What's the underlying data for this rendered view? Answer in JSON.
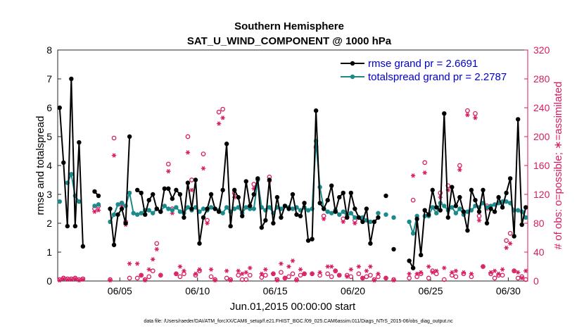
{
  "colors": {
    "rmse": "#000000",
    "spread": "#1a8a8a",
    "obs": "#d81b60",
    "legend_text": "#0000cc",
    "axis": "#262626"
  },
  "chart_data": {
    "type": "line",
    "title": "Southern Hemisphere",
    "subtitle": "SAT_U_WIND_COMPONENT @ 1000 hPa",
    "xlabel": "Jun.01,2015 00:00:00 start",
    "ylabel": "rmse and totalspread",
    "ylabel_right": "# of obs: o=possible; ∗=assimilated",
    "footnote": "data file: /Users/raeder/DAI/ATM_forcXX/CAM6_setup/f.e21.FHIST_BGC.f09_025.CAM6assim.011/Diags_NTrS_2015-06/obs_diag_output.nc",
    "xlim": [
      1.0,
      31.25
    ],
    "ylim": [
      0,
      8
    ],
    "ylim_right": [
      0,
      320
    ],
    "x_ticks": [
      5,
      10,
      15,
      20,
      25,
      30
    ],
    "x_tick_labels": [
      "06/05",
      "06/10",
      "06/15",
      "06/20",
      "06/25",
      "06/30"
    ],
    "y_ticks": [
      0,
      1,
      2,
      3,
      4,
      5,
      6,
      7,
      8
    ],
    "y_ticks_right": [
      0,
      40,
      80,
      120,
      160,
      200,
      240,
      280,
      320
    ],
    "legend": {
      "position": "top-right",
      "entries": [
        "rmse grand pr = 2.6691",
        "totalspread grand pr = 2.2787"
      ]
    },
    "series": [
      {
        "name": "rmse",
        "x": [
          1.125,
          1.375,
          1.625,
          1.875,
          2.125,
          2.375,
          2.625,
          3.375,
          3.625,
          4.375,
          4.625,
          4.875,
          5.125,
          5.375,
          5.625,
          5.875,
          6.125,
          6.375,
          6.625,
          6.875,
          7.125,
          7.375,
          7.625,
          7.875,
          8.125,
          8.375,
          8.625,
          8.875,
          9.125,
          9.375,
          9.625,
          9.875,
          10.125,
          10.375,
          10.625,
          10.875,
          11.125,
          11.375,
          11.625,
          11.875,
          12.125,
          12.375,
          12.625,
          12.875,
          13.125,
          13.375,
          13.625,
          13.875,
          14.125,
          14.375,
          14.625,
          14.875,
          15.125,
          15.375,
          15.625,
          15.875,
          16.125,
          16.375,
          16.625,
          16.875,
          17.125,
          17.375,
          17.625,
          17.875,
          18.125,
          18.375,
          18.625,
          18.875,
          19.125,
          19.375,
          19.625,
          19.875,
          20.125,
          20.375,
          20.625,
          20.875,
          21.125,
          21.375,
          21.625,
          22.125,
          22.625,
          23.625,
          23.875,
          24.125,
          24.375,
          24.625,
          24.875,
          25.125,
          25.375,
          25.625,
          25.875,
          26.125,
          26.375,
          26.625,
          26.875,
          27.125,
          27.375,
          27.625,
          27.875,
          28.125,
          28.375,
          28.625,
          28.875,
          29.125,
          29.375,
          29.625,
          29.875,
          30.125,
          30.375,
          30.625,
          30.875,
          31.125
        ],
        "values": [
          6.0,
          4.1,
          1.9,
          7.0,
          1.9,
          4.8,
          1.2,
          3.1,
          2.95,
          2.5,
          1.25,
          2.3,
          2.5,
          2.0,
          5.0,
          null,
          3.15,
          3.05,
          2.3,
          2.8,
          3.0,
          2.5,
          2.4,
          3.2,
          3.2,
          2.85,
          3.15,
          3.0,
          2.2,
          3.4,
          2.5,
          3.5,
          1.3,
          2.2,
          2.5,
          3.0,
          2.5,
          2.4,
          3.15,
          4.75,
          1.9,
          3.15,
          2.9,
          2.25,
          3.45,
          2.6,
          3.0,
          3.55,
          1.85,
          2.1,
          3.5,
          2.0,
          2.9,
          2.2,
          2.6,
          2.5,
          3.0,
          2.3,
          2.25,
          2.7,
          1.4,
          1.45,
          5.9,
          2.7,
          2.5,
          2.8,
          3.3,
          2.4,
          2.9,
          3.05,
          2.2,
          3.05,
          2.5,
          2.2,
          2.05,
          2.5,
          1.3,
          2.05,
          2.2,
          2.95,
          1.1,
          0.7,
          0.45,
          2.15,
          0.9,
          2.45,
          2.3,
          3.15,
          2.55,
          2.45,
          5.8,
          2.2,
          3.25,
          2.6,
          2.9,
          2.4,
          1.75,
          3.15,
          2.8,
          2.4,
          3.15,
          2.0,
          2.5,
          2.4,
          2.9,
          2.55,
          3.05,
          3.55,
          1.55,
          5.6,
          1.95,
          2.55
        ]
      },
      {
        "name": "totalspread",
        "x": [
          1.125,
          1.375,
          1.625,
          1.875,
          2.125,
          2.375,
          2.625,
          3.375,
          3.625,
          4.375,
          4.625,
          4.875,
          5.125,
          5.375,
          5.625,
          5.875,
          6.125,
          6.375,
          6.625,
          6.875,
          7.125,
          7.375,
          7.625,
          7.875,
          8.125,
          8.375,
          8.625,
          8.875,
          9.125,
          9.375,
          9.625,
          9.875,
          10.125,
          10.375,
          10.625,
          10.875,
          11.125,
          11.375,
          11.625,
          11.875,
          12.125,
          12.375,
          12.625,
          12.875,
          13.125,
          13.375,
          13.625,
          13.875,
          14.125,
          14.375,
          14.625,
          14.875,
          15.125,
          15.375,
          15.625,
          15.875,
          16.125,
          16.375,
          16.625,
          16.875,
          17.125,
          17.375,
          17.625,
          17.875,
          18.125,
          18.375,
          18.625,
          18.875,
          19.125,
          19.375,
          19.625,
          19.875,
          20.125,
          20.375,
          20.625,
          20.875,
          21.125,
          21.375,
          21.625,
          22.125,
          22.625,
          23.625,
          23.875,
          24.125,
          24.375,
          24.625,
          24.875,
          25.125,
          25.375,
          25.625,
          25.875,
          26.125,
          26.375,
          26.625,
          26.875,
          27.125,
          27.375,
          27.625,
          27.875,
          28.125,
          28.375,
          28.625,
          28.875,
          29.125,
          29.375,
          29.625,
          29.875,
          30.125,
          30.375,
          30.625,
          30.875,
          31.125
        ],
        "values": [
          2.75,
          null,
          3.4,
          3.7,
          2.95,
          2.75,
          null,
          2.6,
          2.65,
          2.05,
          2.3,
          2.65,
          2.7,
          2.6,
          3.05,
          2.35,
          2.3,
          2.35,
          2.45,
          2.45,
          2.35,
          2.5,
          2.4,
          2.6,
          2.5,
          2.45,
          2.55,
          2.4,
          2.35,
          2.55,
          2.45,
          2.55,
          2.4,
          2.5,
          2.45,
          2.55,
          2.5,
          2.45,
          2.35,
          2.55,
          2.4,
          2.5,
          2.55,
          2.35,
          2.55,
          2.5,
          2.5,
          3.5,
          2.55,
          2.45,
          2.55,
          2.35,
          2.55,
          2.5,
          2.6,
          2.55,
          2.5,
          2.55,
          2.45,
          2.55,
          2.45,
          2.5,
          4.85,
          3.25,
          2.5,
          2.4,
          2.35,
          2.45,
          2.3,
          2.4,
          2.25,
          2.35,
          2.2,
          2.2,
          2.2,
          2.1,
          2.05,
          null,
          2.35,
          2.3,
          2.2,
          2.05,
          1.65,
          2.25,
          null,
          2.25,
          2.25,
          2.55,
          2.35,
          2.7,
          2.6,
          2.45,
          2.55,
          2.35,
          2.5,
          2.3,
          2.4,
          2.45,
          2.6,
          2.55,
          2.7,
          2.55,
          2.6,
          2.65,
          2.7,
          2.75,
          2.75,
          2.7,
          2.45,
          2.45,
          2.4,
          2.2
        ]
      },
      {
        "name": "obs possible",
        "axis": "right",
        "x": [
          1.125,
          1.375,
          1.625,
          1.875,
          2.125,
          2.375,
          2.625,
          3.375,
          3.625,
          4.375,
          4.625,
          5.125,
          5.375,
          5.625,
          6.125,
          6.375,
          6.625,
          6.875,
          7.125,
          7.375,
          7.625,
          8.125,
          8.375,
          8.625,
          8.875,
          9.125,
          9.375,
          9.625,
          9.875,
          10.125,
          10.375,
          10.625,
          10.875,
          11.125,
          11.375,
          11.625,
          11.875,
          12.125,
          12.375,
          12.625,
          12.875,
          13.125,
          13.375,
          13.625,
          14.125,
          14.375,
          14.625,
          14.875,
          15.125,
          15.375,
          15.625,
          15.875,
          16.125,
          16.375,
          16.625,
          16.875,
          17.375,
          17.625,
          17.875,
          18.125,
          18.375,
          18.625,
          18.875,
          19.125,
          19.375,
          19.625,
          19.875,
          20.125,
          20.375,
          20.625,
          20.875,
          21.125,
          21.375,
          21.625,
          22.125,
          22.625,
          23.625,
          23.875,
          24.125,
          24.375,
          24.625,
          24.875,
          25.125,
          25.375,
          25.625,
          25.875,
          26.125,
          26.375,
          26.625,
          26.875,
          27.125,
          27.375,
          27.625,
          27.875,
          28.125,
          28.375,
          28.625,
          28.875,
          29.125,
          29.375,
          29.625,
          29.875,
          30.125,
          30.375,
          30.625,
          30.875,
          31.125
        ],
        "values": [
          2,
          4,
          3,
          3,
          4,
          2,
          3,
          100,
          104,
          2,
          198,
          108,
          82,
          4,
          4,
          8,
          2,
          6,
          14,
          52,
          8,
          162,
          100,
          10,
          6,
          10,
          200,
          140,
          8,
          14,
          176,
          84,
          6,
          2,
          234,
          238,
          4,
          2,
          122,
          8,
          2,
          2,
          8,
          134,
          5,
          8,
          144,
          10,
          2,
          12,
          4,
          6,
          10,
          2,
          8,
          10,
          10,
          186,
          8,
          90,
          10,
          6,
          14,
          8,
          86,
          8,
          6,
          84,
          10,
          4,
          6,
          8,
          2,
          6,
          4,
          2,
          4,
          112,
          6,
          10,
          164,
          4,
          14,
          10,
          122,
          2,
          132,
          8,
          6,
          160,
          10,
          236,
          6,
          232,
          90,
          20,
          104,
          10,
          4,
          8,
          8,
          56,
          66,
          14,
          4,
          6,
          2
        ]
      },
      {
        "name": "obs assimilated",
        "axis": "right",
        "x": [
          1.125,
          1.375,
          1.625,
          1.875,
          2.125,
          2.375,
          2.625,
          3.375,
          3.625,
          4.375,
          4.625,
          5.125,
          5.375,
          5.625,
          6.125,
          6.375,
          6.625,
          6.875,
          7.125,
          7.375,
          7.625,
          8.125,
          8.375,
          8.625,
          8.875,
          9.125,
          9.375,
          9.625,
          9.875,
          10.125,
          10.375,
          10.625,
          10.875,
          11.125,
          11.375,
          11.625,
          11.875,
          12.125,
          12.375,
          12.625,
          12.875,
          13.125,
          13.375,
          13.625,
          14.125,
          14.375,
          14.625,
          14.875,
          15.125,
          15.375,
          15.625,
          15.875,
          16.125,
          16.375,
          16.625,
          16.875,
          17.375,
          17.625,
          17.875,
          18.125,
          18.375,
          18.625,
          18.875,
          19.125,
          19.375,
          19.625,
          19.875,
          20.125,
          20.375,
          20.625,
          20.875,
          21.125,
          21.375,
          21.625,
          22.125,
          22.625,
          23.625,
          23.875,
          24.125,
          24.375,
          24.625,
          24.875,
          25.125,
          25.375,
          25.625,
          25.875,
          26.125,
          26.375,
          26.625,
          26.875,
          27.125,
          27.375,
          27.625,
          27.875,
          28.125,
          28.375,
          28.625,
          28.875,
          29.125,
          29.375,
          29.625,
          29.875,
          30.125,
          30.375,
          30.625,
          30.875,
          31.125
        ],
        "values": [
          1,
          3,
          2,
          2,
          3,
          1,
          2,
          96,
          98,
          1,
          174,
          104,
          78,
          24,
          24,
          8,
          1,
          16,
          30,
          44,
          8,
          152,
          94,
          10,
          20,
          14,
          178,
          126,
          10,
          16,
          156,
          80,
          16,
          1,
          218,
          226,
          14,
          1,
          116,
          14,
          10,
          12,
          18,
          128,
          10,
          16,
          138,
          10,
          1,
          24,
          4,
          20,
          28,
          1,
          16,
          10,
          10,
          184,
          12,
          86,
          20,
          20,
          14,
          8,
          82,
          6,
          16,
          80,
          20,
          4,
          14,
          20,
          1,
          10,
          4,
          1,
          10,
          146,
          10,
          12,
          150,
          20,
          12,
          14,
          116,
          18,
          126,
          12,
          14,
          154,
          12,
          230,
          10,
          226,
          84,
          20,
          100,
          12,
          14,
          10,
          16,
          46,
          52,
          14,
          12,
          4,
          14
        ]
      }
    ]
  }
}
